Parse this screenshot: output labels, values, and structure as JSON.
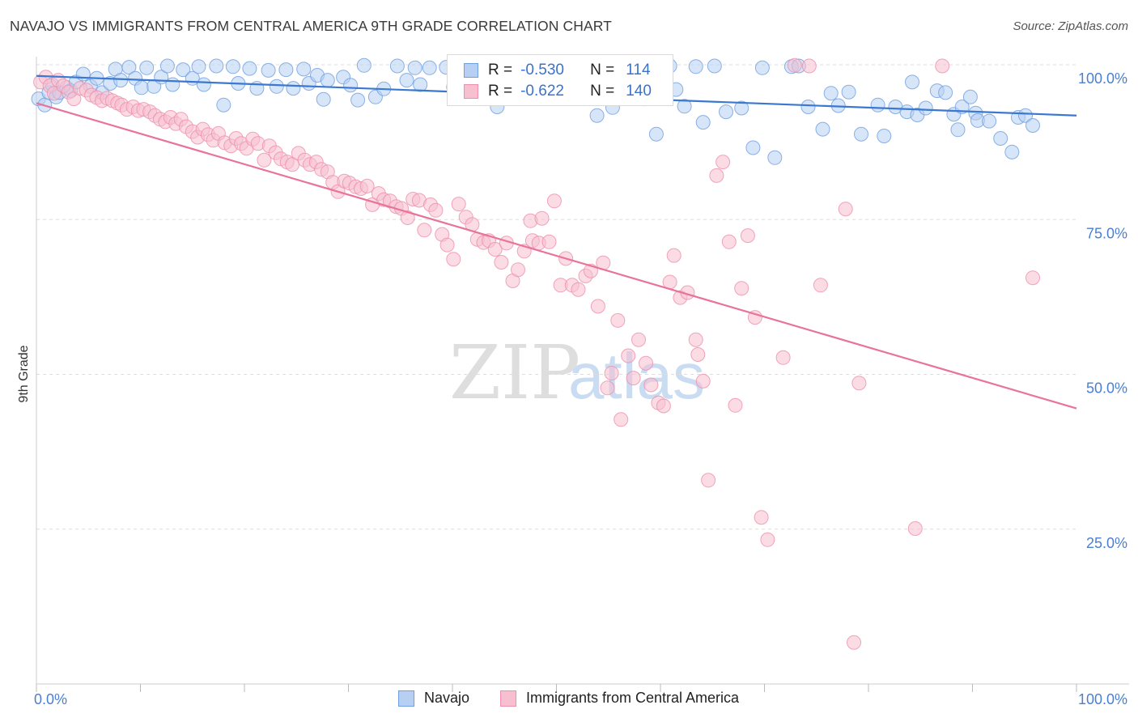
{
  "title": "NAVAJO VS IMMIGRANTS FROM CENTRAL AMERICA 9TH GRADE CORRELATION CHART",
  "source": "Source: ZipAtlas.com",
  "colors": {
    "navajo_fill": "#b7cff2",
    "navajo_stroke": "#6f9fe0",
    "navajo_line": "#3b78d0",
    "imm_fill": "#f7bfd0",
    "imm_stroke": "#ee8fad",
    "imm_line": "#e8739b",
    "axis_label": "#4a7fd1",
    "grid": "#dddddd"
  },
  "legend": {
    "rows": [
      {
        "r_label": "R =",
        "r_value": "-0.530",
        "n_label": "N =",
        "n_value": "114"
      },
      {
        "r_label": "R =",
        "r_value": "-0.622",
        "n_label": "N =",
        "n_value": "140"
      }
    ]
  },
  "bottom_legend": [
    "Navajo",
    "Immigrants from Central America"
  ],
  "watermark": {
    "zip": "ZIP",
    "atlas": "atlas"
  },
  "chart_data": {
    "type": "scatter",
    "title": "NAVAJO VS IMMIGRANTS FROM CENTRAL AMERICA 9TH GRADE CORRELATION CHART",
    "xlabel": "",
    "ylabel": "9th Grade",
    "xlim": [
      0,
      100
    ],
    "ylim": [
      0,
      100
    ],
    "x_tick_labels": [
      {
        "value": 0,
        "label": "0.0%"
      },
      {
        "value": 100,
        "label": "100.0%"
      }
    ],
    "y_tick_labels": [
      {
        "value": 100,
        "label": "100.0%"
      },
      {
        "value": 75,
        "label": "75.0%"
      },
      {
        "value": 50,
        "label": "50.0%"
      },
      {
        "value": 25,
        "label": "25.0%"
      }
    ],
    "grid": "horizontal dashed",
    "legend_position": "top-center",
    "series": [
      {
        "name": "Navajo",
        "R": -0.53,
        "N": 114,
        "trend": [
          [
            0,
            98.2
          ],
          [
            100,
            91.8
          ]
        ],
        "points": [
          [
            0.2,
            94.5
          ],
          [
            0.8,
            93.5
          ],
          [
            1.2,
            95.5
          ],
          [
            1.5,
            96.8
          ],
          [
            1.9,
            94.8
          ],
          [
            2.2,
            95.5
          ],
          [
            2.9,
            96.3
          ],
          [
            3.3,
            95.8
          ],
          [
            3.8,
            97.2
          ],
          [
            4.5,
            98.5
          ],
          [
            5.2,
            96.5
          ],
          [
            5.8,
            97.8
          ],
          [
            6.3,
            95.5
          ],
          [
            7.1,
            97.0
          ],
          [
            7.6,
            99.3
          ],
          [
            8.1,
            97.5
          ],
          [
            8.9,
            99.6
          ],
          [
            9.5,
            97.8
          ],
          [
            10.1,
            96.3
          ],
          [
            10.6,
            99.5
          ],
          [
            11.3,
            96.5
          ],
          [
            12.0,
            98.0
          ],
          [
            12.6,
            99.8
          ],
          [
            13.1,
            96.8
          ],
          [
            14.1,
            99.2
          ],
          [
            15.0,
            97.8
          ],
          [
            15.6,
            99.7
          ],
          [
            16.1,
            96.8
          ],
          [
            17.3,
            99.8
          ],
          [
            18.0,
            93.5
          ],
          [
            18.9,
            99.7
          ],
          [
            19.4,
            97.0
          ],
          [
            20.5,
            99.4
          ],
          [
            21.2,
            96.2
          ],
          [
            22.3,
            99.1
          ],
          [
            23.1,
            96.5
          ],
          [
            24.0,
            99.2
          ],
          [
            24.7,
            96.2
          ],
          [
            25.7,
            99.3
          ],
          [
            26.2,
            97.0
          ],
          [
            27.0,
            98.3
          ],
          [
            27.6,
            94.4
          ],
          [
            28.0,
            97.5
          ],
          [
            29.5,
            98.0
          ],
          [
            30.2,
            96.7
          ],
          [
            30.9,
            94.3
          ],
          [
            31.5,
            99.9
          ],
          [
            32.6,
            94.8
          ],
          [
            33.4,
            96.1
          ],
          [
            34.7,
            99.8
          ],
          [
            35.6,
            97.5
          ],
          [
            36.4,
            99.5
          ],
          [
            36.9,
            96.8
          ],
          [
            37.8,
            99.5
          ],
          [
            39.4,
            99.6
          ],
          [
            40.1,
            96.4
          ],
          [
            41.3,
            99.9
          ],
          [
            42.0,
            95.6
          ],
          [
            43.7,
            96.1
          ],
          [
            44.3,
            93.2
          ],
          [
            45.8,
            99.7
          ],
          [
            46.1,
            99.6
          ],
          [
            47.1,
            94.9
          ],
          [
            48.2,
            99.5
          ],
          [
            49.3,
            96.2
          ],
          [
            50.1,
            99.7
          ],
          [
            51.6,
            94.8
          ],
          [
            52.4,
            99.4
          ],
          [
            53.3,
            96.0
          ],
          [
            53.9,
            91.8
          ],
          [
            54.8,
            99.3
          ],
          [
            55.4,
            93.1
          ],
          [
            56.7,
            97.0
          ],
          [
            57.9,
            99.8
          ],
          [
            58.5,
            94.5
          ],
          [
            59.6,
            88.8
          ],
          [
            60.9,
            99.8
          ],
          [
            61.5,
            96.0
          ],
          [
            62.3,
            93.3
          ],
          [
            63.4,
            99.7
          ],
          [
            64.1,
            90.7
          ],
          [
            65.2,
            99.8
          ],
          [
            66.3,
            92.4
          ],
          [
            67.8,
            93.0
          ],
          [
            68.9,
            86.6
          ],
          [
            69.8,
            99.5
          ],
          [
            71.0,
            85.0
          ],
          [
            72.6,
            99.7
          ],
          [
            73.3,
            99.8
          ],
          [
            74.2,
            93.2
          ],
          [
            75.6,
            89.6
          ],
          [
            76.4,
            95.4
          ],
          [
            77.1,
            93.4
          ],
          [
            78.1,
            95.6
          ],
          [
            79.3,
            88.8
          ],
          [
            80.9,
            93.5
          ],
          [
            81.5,
            88.5
          ],
          [
            82.6,
            93.2
          ],
          [
            83.7,
            92.4
          ],
          [
            84.2,
            97.2
          ],
          [
            84.7,
            91.9
          ],
          [
            85.5,
            93.0
          ],
          [
            86.6,
            95.8
          ],
          [
            87.4,
            95.5
          ],
          [
            88.2,
            92.0
          ],
          [
            88.6,
            89.5
          ],
          [
            89.0,
            93.2
          ],
          [
            89.8,
            94.8
          ],
          [
            90.3,
            92.2
          ],
          [
            90.5,
            91.0
          ],
          [
            91.6,
            90.9
          ],
          [
            92.7,
            88.1
          ],
          [
            93.8,
            85.9
          ],
          [
            94.4,
            91.5
          ],
          [
            95.1,
            91.8
          ],
          [
            95.8,
            90.2
          ]
        ]
      },
      {
        "name": "Immigrants from Central America",
        "R": -0.622,
        "N": 140,
        "trend": [
          [
            0,
            93.8
          ],
          [
            100,
            44.5
          ]
        ],
        "points": [
          [
            0.4,
            97.2
          ],
          [
            0.9,
            98.0
          ],
          [
            1.3,
            96.6
          ],
          [
            1.7,
            95.4
          ],
          [
            2.1,
            97.5
          ],
          [
            2.6,
            96.6
          ],
          [
            3.1,
            95.6
          ],
          [
            3.6,
            94.5
          ],
          [
            4.2,
            96.2
          ],
          [
            4.8,
            95.9
          ],
          [
            5.3,
            95.1
          ],
          [
            5.8,
            94.7
          ],
          [
            6.3,
            94.2
          ],
          [
            6.8,
            94.6
          ],
          [
            7.3,
            94.2
          ],
          [
            7.8,
            93.8
          ],
          [
            8.2,
            93.5
          ],
          [
            8.7,
            92.8
          ],
          [
            9.3,
            93.2
          ],
          [
            9.8,
            92.6
          ],
          [
            10.3,
            92.8
          ],
          [
            10.9,
            92.4
          ],
          [
            11.4,
            91.8
          ],
          [
            11.9,
            91.2
          ],
          [
            12.4,
            90.8
          ],
          [
            12.9,
            91.5
          ],
          [
            13.4,
            90.5
          ],
          [
            13.9,
            91.2
          ],
          [
            14.4,
            90.0
          ],
          [
            15.0,
            89.2
          ],
          [
            15.5,
            88.3
          ],
          [
            16.0,
            89.6
          ],
          [
            16.5,
            88.7
          ],
          [
            17.0,
            87.8
          ],
          [
            17.5,
            88.9
          ],
          [
            18.1,
            87.4
          ],
          [
            18.7,
            86.9
          ],
          [
            19.2,
            88.1
          ],
          [
            19.7,
            87.3
          ],
          [
            20.2,
            86.5
          ],
          [
            20.8,
            88.0
          ],
          [
            21.3,
            87.3
          ],
          [
            21.9,
            84.6
          ],
          [
            22.4,
            86.9
          ],
          [
            23.0,
            85.8
          ],
          [
            23.5,
            84.8
          ],
          [
            24.1,
            84.3
          ],
          [
            24.6,
            83.9
          ],
          [
            25.2,
            85.7
          ],
          [
            25.8,
            84.6
          ],
          [
            26.3,
            83.9
          ],
          [
            26.9,
            84.3
          ],
          [
            27.4,
            83.1
          ],
          [
            28.0,
            82.7
          ],
          [
            28.5,
            81.0
          ],
          [
            29.0,
            79.5
          ],
          [
            29.6,
            81.2
          ],
          [
            30.1,
            80.9
          ],
          [
            30.7,
            80.3
          ],
          [
            31.2,
            80.0
          ],
          [
            31.8,
            80.4
          ],
          [
            32.3,
            77.4
          ],
          [
            32.9,
            79.2
          ],
          [
            33.4,
            78.2
          ],
          [
            34.0,
            78.0
          ],
          [
            34.6,
            77.1
          ],
          [
            35.1,
            76.8
          ],
          [
            35.7,
            75.3
          ],
          [
            36.2,
            78.3
          ],
          [
            36.8,
            78.1
          ],
          [
            37.3,
            73.3
          ],
          [
            37.9,
            77.4
          ],
          [
            38.4,
            76.5
          ],
          [
            39.0,
            72.6
          ],
          [
            39.5,
            70.9
          ],
          [
            40.1,
            68.6
          ],
          [
            40.6,
            77.5
          ],
          [
            41.3,
            75.4
          ],
          [
            41.9,
            74.2
          ],
          [
            42.4,
            71.8
          ],
          [
            43.0,
            71.3
          ],
          [
            43.5,
            71.6
          ],
          [
            44.1,
            70.2
          ],
          [
            44.7,
            68.1
          ],
          [
            45.2,
            71.2
          ],
          [
            45.8,
            65.1
          ],
          [
            46.3,
            66.9
          ],
          [
            46.9,
            69.9
          ],
          [
            47.5,
            74.8
          ],
          [
            47.7,
            71.6
          ],
          [
            48.3,
            71.2
          ],
          [
            48.6,
            75.2
          ],
          [
            49.3,
            71.4
          ],
          [
            49.8,
            78.0
          ],
          [
            50.4,
            64.4
          ],
          [
            50.9,
            68.7
          ],
          [
            51.5,
            64.4
          ],
          [
            52.1,
            63.7
          ],
          [
            52.8,
            65.9
          ],
          [
            53.3,
            66.7
          ],
          [
            54.0,
            61.0
          ],
          [
            54.5,
            68.0
          ],
          [
            54.9,
            47.8
          ],
          [
            55.3,
            50.2
          ],
          [
            55.9,
            58.7
          ],
          [
            56.2,
            42.7
          ],
          [
            56.9,
            53.0
          ],
          [
            57.4,
            49.4
          ],
          [
            57.9,
            55.6
          ],
          [
            58.6,
            51.8
          ],
          [
            59.1,
            48.3
          ],
          [
            59.8,
            45.4
          ],
          [
            60.3,
            44.9
          ],
          [
            60.9,
            64.9
          ],
          [
            61.3,
            69.2
          ],
          [
            61.9,
            62.4
          ],
          [
            62.6,
            63.2
          ],
          [
            63.4,
            55.6
          ],
          [
            63.6,
            53.2
          ],
          [
            64.1,
            48.9
          ],
          [
            64.6,
            32.9
          ],
          [
            65.4,
            82.1
          ],
          [
            66.0,
            84.3
          ],
          [
            66.6,
            71.4
          ],
          [
            67.2,
            45.0
          ],
          [
            67.8,
            63.9
          ],
          [
            68.4,
            72.4
          ],
          [
            69.1,
            59.2
          ],
          [
            69.7,
            26.9
          ],
          [
            70.3,
            23.3
          ],
          [
            71.8,
            52.7
          ],
          [
            72.9,
            99.9
          ],
          [
            74.3,
            99.8
          ],
          [
            75.4,
            64.4
          ],
          [
            77.8,
            76.7
          ],
          [
            78.6,
            6.7
          ],
          [
            79.1,
            48.6
          ],
          [
            84.5,
            25.1
          ],
          [
            87.1,
            99.8
          ],
          [
            95.8,
            65.6
          ]
        ]
      }
    ]
  }
}
